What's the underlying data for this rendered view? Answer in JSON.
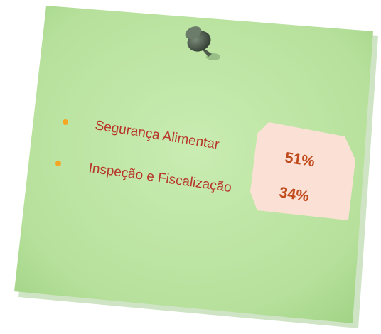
{
  "items": [
    {
      "label": "Segurança Alimentar",
      "value": "51%"
    },
    {
      "label": "Inspeção e Fiscalização",
      "value": "34%"
    }
  ]
}
